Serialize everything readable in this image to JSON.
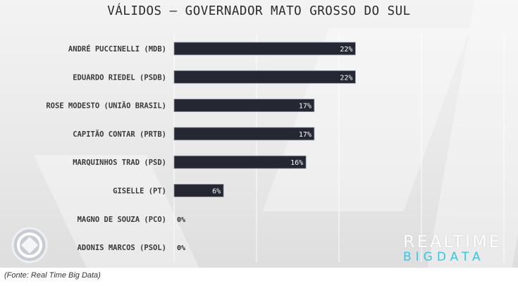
{
  "title": "VÁLIDOS – GOVERNADOR MATO GROSSO DO SUL",
  "source": "(Fonte: Real Time Big Data)",
  "brand": {
    "line1": "REALTIME",
    "line2": "BIGDATA"
  },
  "colors": {
    "bar": "#252833",
    "bar_edge": "#9aa0aa",
    "brand_accent": "#35c6e0",
    "background": "#ececec"
  },
  "chart_data": {
    "type": "bar",
    "orientation": "horizontal",
    "title": "VÁLIDOS – GOVERNADOR MATO GROSSO DO SUL",
    "categories": [
      "ANDRÉ PUCCINELLI (MDB)",
      "EDUARDO RIEDEL (PSDB)",
      "ROSE MODESTO (UNIÃO BRASIL)",
      "CAPITÃO CONTAR (PRTB)",
      "MARQUINHOS TRAD (PSD)",
      "GISELLE (PT)",
      "MAGNO DE SOUZA (PCO)",
      "ADONIS MARCOS (PSOL)"
    ],
    "values": [
      22,
      22,
      17,
      17,
      16,
      6,
      0,
      0
    ],
    "value_labels": [
      "22%",
      "22%",
      "17%",
      "17%",
      "16%",
      "6%",
      "0%",
      "0%"
    ],
    "xlim": [
      0,
      40
    ],
    "grid": true,
    "legend": "none"
  }
}
